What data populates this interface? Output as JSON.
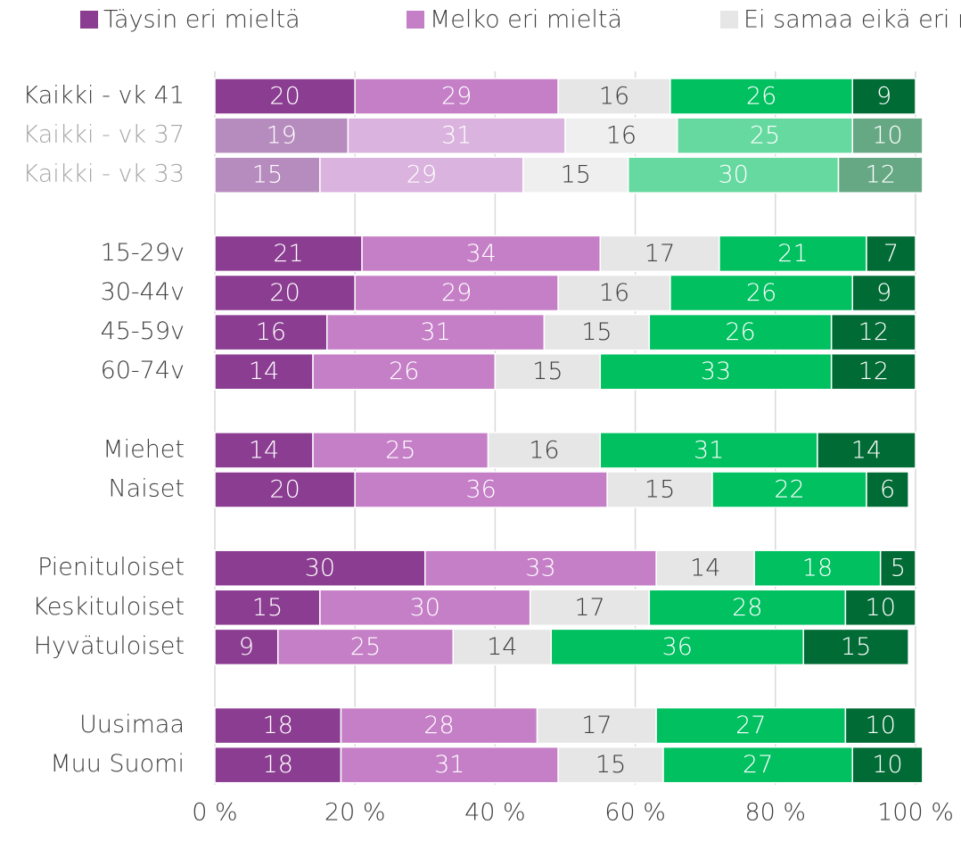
{
  "chart_data": {
    "type": "stacked_barh",
    "categories": [
      "Kaikki - vk 41",
      "Kaikki - vk 37",
      "Kaikki - vk 33",
      null,
      "15-29v",
      "30-44v",
      "45-59v",
      "60-74v",
      null,
      "Miehet",
      "Naiset",
      null,
      "Pienituloiset",
      "Keskituloiset",
      "Hyvätuloiset",
      null,
      "Uusimaa",
      "Muu Suomi"
    ],
    "category_colors": [
      "#404040",
      "#a6a6a6",
      "#a6a6a6",
      null,
      "#404040",
      "#404040",
      "#404040",
      "#404040",
      null,
      "#404040",
      "#404040",
      null,
      "#404040",
      "#404040",
      "#404040",
      null,
      "#404040",
      "#404040"
    ],
    "series": [
      {
        "name": "Täysin eri mieltä",
        "color": "#8b3d91",
        "label_color": "#ffffff",
        "colors": [
          "#8b3d91",
          "#b68bbd",
          "#b68bbd",
          null,
          "#8b3d91",
          "#8b3d91",
          "#8b3d91",
          "#8b3d91",
          null,
          "#8b3d91",
          "#8b3d91",
          null,
          "#8b3d91",
          "#8b3d91",
          "#8b3d91",
          null,
          "#8b3d91",
          "#8b3d91"
        ],
        "values": [
          20,
          19,
          15,
          null,
          21,
          20,
          16,
          14,
          null,
          14,
          20,
          null,
          30,
          15,
          9,
          null,
          18,
          18
        ]
      },
      {
        "name": "Melko eri mieltä",
        "color": "#c57fc7",
        "label_color": "#ffffff",
        "colors": [
          "#c57fc7",
          "#dab3de",
          "#dab3de",
          null,
          "#c57fc7",
          "#c57fc7",
          "#c57fc7",
          "#c57fc7",
          null,
          "#c57fc7",
          "#c57fc7",
          null,
          "#c57fc7",
          "#c57fc7",
          "#c57fc7",
          null,
          "#c57fc7",
          "#c57fc7"
        ],
        "values": [
          29,
          31,
          29,
          null,
          34,
          29,
          31,
          26,
          null,
          25,
          36,
          null,
          33,
          30,
          25,
          null,
          28,
          31
        ]
      },
      {
        "name": "Ei samaa eikä eri mieltä",
        "color": "#e6e6e6",
        "label_color": "#404040",
        "colors": [
          "#e6e6e6",
          "#efefef",
          "#efefef",
          null,
          "#e6e6e6",
          "#e6e6e6",
          "#e6e6e6",
          "#e6e6e6",
          null,
          "#e6e6e6",
          "#e6e6e6",
          null,
          "#e6e6e6",
          "#e6e6e6",
          "#e6e6e6",
          null,
          "#e6e6e6",
          "#e6e6e6"
        ],
        "values": [
          16,
          16,
          15,
          null,
          17,
          16,
          15,
          15,
          null,
          16,
          15,
          null,
          14,
          17,
          14,
          null,
          17,
          15
        ]
      },
      {
        "color": "#00c060",
        "label_color": "#ffffff",
        "colors": [
          "#00c060",
          "#66d9a0",
          "#66d9a0",
          null,
          "#00c060",
          "#00c060",
          "#00c060",
          "#00c060",
          null,
          "#00c060",
          "#00c060",
          null,
          "#00c060",
          "#00c060",
          "#00c060",
          null,
          "#00c060",
          "#00c060"
        ],
        "values": [
          26,
          25,
          30,
          null,
          21,
          26,
          26,
          33,
          null,
          31,
          22,
          null,
          18,
          28,
          36,
          null,
          27,
          27
        ]
      },
      {
        "color": "#006b35",
        "label_color": "#ffffff",
        "colors": [
          "#006b35",
          "#66a884",
          "#66a884",
          null,
          "#006b35",
          "#006b35",
          "#006b35",
          "#006b35",
          null,
          "#006b35",
          "#006b35",
          null,
          "#006b35",
          "#006b35",
          "#006b35",
          null,
          "#006b35",
          "#006b35"
        ],
        "values": [
          9,
          10,
          12,
          null,
          7,
          9,
          12,
          12,
          null,
          14,
          6,
          null,
          5,
          10,
          15,
          null,
          10,
          10
        ]
      }
    ],
    "xlim": [
      0,
      100
    ],
    "xticks": [
      {
        "value": 0,
        "label": "0 %"
      },
      {
        "value": 20,
        "label": "20 %"
      },
      {
        "value": 40,
        "label": "40 %"
      },
      {
        "value": 60,
        "label": "60 %"
      },
      {
        "value": 80,
        "label": "80 %"
      },
      {
        "value": 100,
        "label": "100 %"
      }
    ],
    "grid": true
  }
}
